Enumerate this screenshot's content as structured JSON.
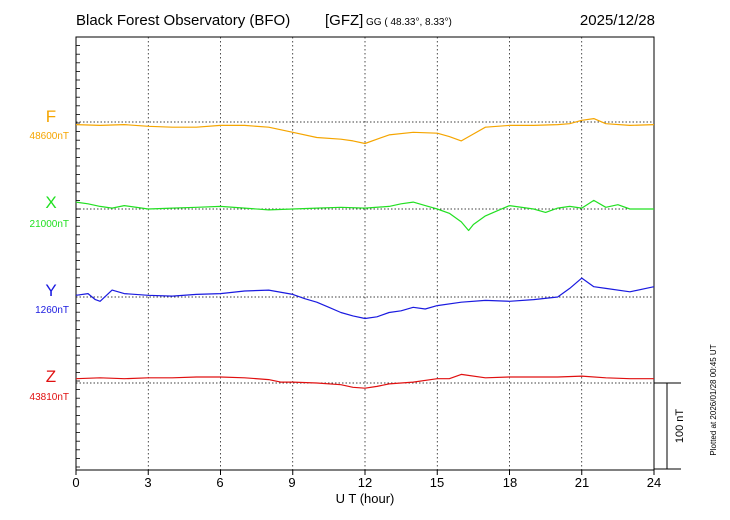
{
  "header": {
    "title": "Black Forest Observatory (BFO)",
    "agency": "[GFZ]",
    "coords": "GG ( 48.33°,   8.33°)",
    "date": "2025/12/28"
  },
  "xaxis": {
    "label": "U T (hour)",
    "ticks": [
      "0",
      "3",
      "6",
      "9",
      "12",
      "15",
      "18",
      "21",
      "24"
    ]
  },
  "scale_label": "100 nT",
  "footer": "Plotted at 2026/01/28 00:45 UT",
  "chart_data": {
    "type": "line",
    "title": "Black Forest Observatory (BFO)",
    "xlabel": "U T (hour)",
    "xlim": [
      0,
      24
    ],
    "x_ticks": [
      0,
      3,
      6,
      9,
      12,
      15,
      18,
      21,
      24
    ],
    "grid": true,
    "scale_bar_nT": 100,
    "series": [
      {
        "name": "F",
        "baseline_label": "48600nT",
        "color": "#f5a500",
        "x": [
          0,
          1,
          2,
          3,
          4,
          5,
          6,
          7,
          8,
          9,
          10,
          11,
          11.5,
          12,
          12.5,
          13,
          14,
          15,
          15.5,
          16,
          16.5,
          17,
          18,
          19,
          20,
          20.5,
          21,
          21.5,
          22,
          23,
          24
        ],
        "y": [
          -3,
          -4,
          -3,
          -5,
          -6,
          -6,
          -4,
          -4,
          -6,
          -12,
          -18,
          -20,
          -22,
          -25,
          -20,
          -15,
          -12,
          -13,
          -17,
          -22,
          -14,
          -6,
          -4,
          -4,
          -3,
          -2,
          2,
          4,
          -2,
          -4,
          -3
        ]
      },
      {
        "name": "X",
        "baseline_label": "21000nT",
        "color": "#22e022",
        "x": [
          0,
          0.5,
          1,
          1.5,
          2,
          3,
          4,
          5,
          6,
          7,
          8,
          9,
          10,
          11,
          12,
          13,
          13.5,
          14,
          14.5,
          15,
          15.5,
          16,
          16.3,
          16.5,
          17,
          17.5,
          18,
          19,
          19.5,
          20,
          20.5,
          21,
          21.5,
          22,
          22.5,
          23,
          24
        ],
        "y": [
          8,
          6,
          3,
          1,
          4,
          0,
          1,
          2,
          3,
          1,
          -1,
          0,
          1,
          2,
          1,
          3,
          6,
          8,
          4,
          0,
          -5,
          -15,
          -25,
          -18,
          -8,
          -2,
          4,
          0,
          -4,
          1,
          3,
          1,
          10,
          2,
          5,
          0,
          0
        ]
      },
      {
        "name": "Y",
        "baseline_label": "1260nT",
        "color": "#1a1ae0",
        "x": [
          0,
          0.5,
          0.8,
          1,
          1.5,
          2,
          3,
          4,
          5,
          6,
          7,
          8,
          9,
          9.5,
          10,
          10.5,
          11,
          11.5,
          12,
          12.5,
          13,
          13.5,
          14,
          14.5,
          15,
          16,
          17,
          18,
          19,
          20,
          20.5,
          21,
          21.5,
          22,
          23,
          24
        ],
        "y": [
          2,
          4,
          -3,
          -5,
          8,
          4,
          2,
          1,
          3,
          4,
          7,
          8,
          3,
          -2,
          -6,
          -12,
          -18,
          -22,
          -25,
          -23,
          -18,
          -16,
          -12,
          -14,
          -10,
          -6,
          -4,
          -5,
          -3,
          0,
          10,
          22,
          12,
          10,
          6,
          12
        ]
      },
      {
        "name": "Z",
        "baseline_label": "43810nT",
        "color": "#e01010",
        "x": [
          0,
          1,
          2,
          3,
          4,
          5,
          6,
          7,
          8,
          8.5,
          9,
          10,
          11,
          11.5,
          12,
          12.5,
          13,
          14,
          15,
          15.5,
          16,
          17,
          18,
          19,
          20,
          21,
          22,
          23,
          24
        ],
        "y": [
          5,
          6,
          5,
          6,
          6,
          7,
          7,
          6,
          4,
          1,
          1,
          0,
          -2,
          -5,
          -6,
          -4,
          -1,
          1,
          5,
          5,
          10,
          6,
          7,
          7,
          7,
          8,
          6,
          5,
          5
        ]
      }
    ]
  }
}
